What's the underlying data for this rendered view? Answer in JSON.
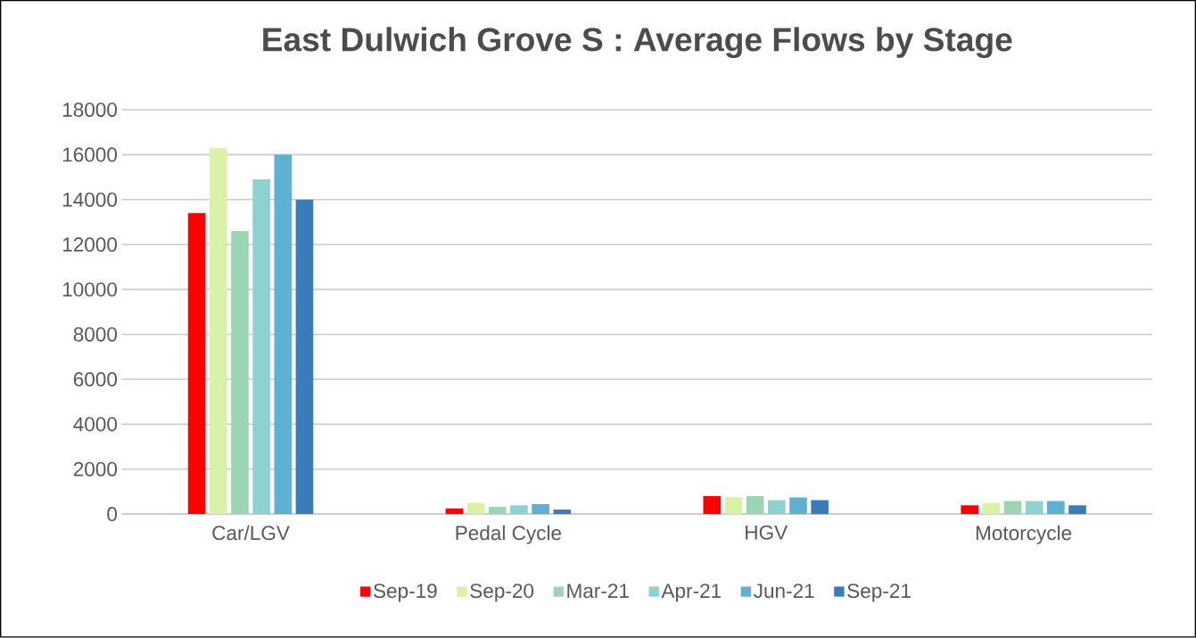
{
  "chart_data": {
    "type": "bar",
    "title": "East Dulwich  Grove S : Average Flows by Stage",
    "categories": [
      "Car/LGV",
      "Pedal Cycle",
      "HGV",
      "Motorcycle"
    ],
    "series": [
      {
        "name": "Sep-19",
        "color": "#ff0000",
        "values": [
          13400,
          250,
          800,
          390
        ]
      },
      {
        "name": "Sep-20",
        "color": "#d9f2a6",
        "values": [
          16300,
          500,
          760,
          500
        ]
      },
      {
        "name": "Mar-21",
        "color": "#9ad6b4",
        "values": [
          12600,
          320,
          800,
          580
        ]
      },
      {
        "name": "Apr-21",
        "color": "#8ed1d0",
        "values": [
          14900,
          390,
          620,
          580
        ]
      },
      {
        "name": "Jun-21",
        "color": "#5fb1d3",
        "values": [
          16000,
          440,
          740,
          580
        ]
      },
      {
        "name": "Sep-21",
        "color": "#3a7bb8",
        "values": [
          14000,
          200,
          620,
          390
        ]
      }
    ],
    "ylim": [
      0,
      18000
    ],
    "yticks": [
      0,
      2000,
      4000,
      6000,
      8000,
      10000,
      12000,
      14000,
      16000,
      18000
    ],
    "grid": "y",
    "legend": "bottom"
  }
}
